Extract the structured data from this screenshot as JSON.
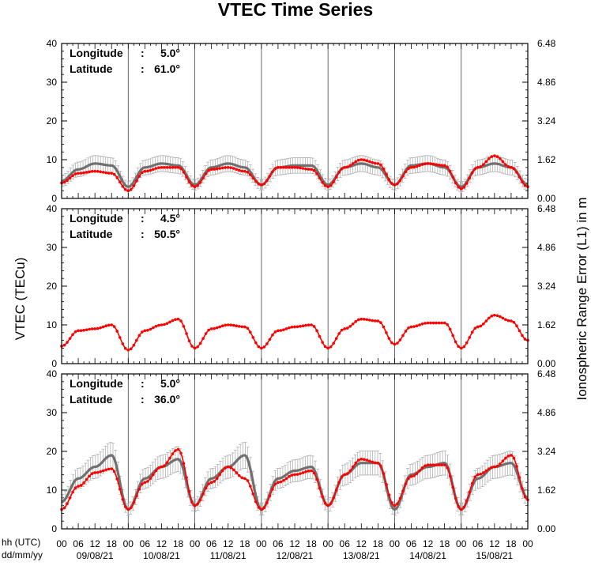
{
  "chart_data": {
    "type": "line",
    "title": "VTEC Time Series",
    "ylabel": "VTEC (TECu)",
    "y2label": "Ionospheric Range Error (L1) in m",
    "xlabel_time": "hh (UTC)",
    "xlabel_date": "dd/mm/yy",
    "ylim": [
      0,
      40
    ],
    "yticks": [
      "0",
      "10",
      "20",
      "30",
      "40"
    ],
    "y2lim": [
      0,
      6.48
    ],
    "y2ticks": [
      "0.00",
      "1.62",
      "3.24",
      "4.86",
      "6.48"
    ],
    "hour_ticks": [
      "00",
      "06",
      "12",
      "18"
    ],
    "last_hour_tick": "00",
    "dates": [
      "09/08/21",
      "10/08/21",
      "11/08/21",
      "12/08/21",
      "13/08/21",
      "14/08/21",
      "15/08/21"
    ],
    "x_unit": "hours since 09/08/21 00 UTC",
    "xlim": [
      0,
      168
    ],
    "series_colors": {
      "measured": "#ff0000",
      "reference": "#707070",
      "spread": "#a8a8a8"
    },
    "panels": [
      {
        "longitude_label": "Longitude",
        "latitude_label": "Latitude",
        "longitude": "5.0°",
        "latitude": "61.0°",
        "error_bars": true,
        "reference": [
          [
            0,
            4.5
          ],
          [
            6,
            7.5
          ],
          [
            12,
            9
          ],
          [
            18,
            8.5
          ],
          [
            24,
            3
          ],
          [
            30,
            8
          ],
          [
            36,
            9
          ],
          [
            42,
            8.5
          ],
          [
            48,
            3.5
          ],
          [
            54,
            8
          ],
          [
            60,
            9
          ],
          [
            66,
            8
          ],
          [
            72,
            3.5
          ],
          [
            78,
            8
          ],
          [
            84,
            8.5
          ],
          [
            90,
            8.5
          ],
          [
            96,
            3.5
          ],
          [
            102,
            8
          ],
          [
            108,
            9
          ],
          [
            114,
            8
          ],
          [
            120,
            3.5
          ],
          [
            126,
            8.5
          ],
          [
            132,
            9
          ],
          [
            138,
            8
          ],
          [
            144,
            3
          ],
          [
            150,
            8
          ],
          [
            156,
            9
          ],
          [
            162,
            8
          ],
          [
            168,
            3.5
          ]
        ],
        "measured": [
          [
            0,
            4
          ],
          [
            6,
            6.5
          ],
          [
            12,
            7
          ],
          [
            18,
            6.5
          ],
          [
            24,
            2
          ],
          [
            30,
            7
          ],
          [
            36,
            8
          ],
          [
            42,
            8
          ],
          [
            48,
            3
          ],
          [
            54,
            7.5
          ],
          [
            60,
            8
          ],
          [
            66,
            7
          ],
          [
            72,
            3.5
          ],
          [
            78,
            8
          ],
          [
            84,
            8
          ],
          [
            90,
            7.5
          ],
          [
            96,
            3
          ],
          [
            102,
            8
          ],
          [
            108,
            10
          ],
          [
            114,
            9
          ],
          [
            120,
            3.5
          ],
          [
            126,
            8
          ],
          [
            132,
            9
          ],
          [
            138,
            8.5
          ],
          [
            144,
            2.5
          ],
          [
            150,
            8
          ],
          [
            156,
            11
          ],
          [
            162,
            8
          ],
          [
            168,
            3
          ]
        ]
      },
      {
        "longitude_label": "Longitude",
        "latitude_label": "Latitude",
        "longitude": "4.5°",
        "latitude": "50.5°",
        "error_bars": false,
        "reference": [],
        "measured": [
          [
            0,
            4.5
          ],
          [
            6,
            8.5
          ],
          [
            12,
            9
          ],
          [
            18,
            10
          ],
          [
            24,
            3.5
          ],
          [
            30,
            8.5
          ],
          [
            36,
            10
          ],
          [
            42,
            11.5
          ],
          [
            48,
            4
          ],
          [
            54,
            9
          ],
          [
            60,
            10
          ],
          [
            66,
            9.5
          ],
          [
            72,
            4
          ],
          [
            78,
            8.5
          ],
          [
            84,
            9.5
          ],
          [
            90,
            10
          ],
          [
            96,
            4
          ],
          [
            102,
            9
          ],
          [
            108,
            11.5
          ],
          [
            114,
            11
          ],
          [
            120,
            5
          ],
          [
            126,
            9.5
          ],
          [
            132,
            10.5
          ],
          [
            138,
            10.5
          ],
          [
            144,
            4
          ],
          [
            150,
            9.5
          ],
          [
            156,
            12.5
          ],
          [
            162,
            11
          ],
          [
            168,
            6
          ]
        ]
      },
      {
        "longitude_label": "Longitude",
        "latitude_label": "Latitude",
        "longitude": "5.0°",
        "latitude": "36.0°",
        "error_bars": true,
        "reference": [
          [
            0,
            7
          ],
          [
            6,
            13
          ],
          [
            12,
            16
          ],
          [
            18,
            19
          ],
          [
            24,
            5
          ],
          [
            30,
            13
          ],
          [
            36,
            16
          ],
          [
            42,
            18
          ],
          [
            48,
            6
          ],
          [
            54,
            13
          ],
          [
            60,
            16
          ],
          [
            66,
            19
          ],
          [
            72,
            5
          ],
          [
            78,
            13
          ],
          [
            84,
            15
          ],
          [
            90,
            16
          ],
          [
            96,
            6
          ],
          [
            102,
            14
          ],
          [
            108,
            17
          ],
          [
            114,
            17
          ],
          [
            120,
            5
          ],
          [
            126,
            14
          ],
          [
            132,
            16
          ],
          [
            138,
            17
          ],
          [
            144,
            5
          ],
          [
            150,
            13
          ],
          [
            156,
            16
          ],
          [
            162,
            17
          ],
          [
            168,
            8
          ]
        ],
        "measured": [
          [
            0,
            5
          ],
          [
            6,
            11
          ],
          [
            12,
            14.5
          ],
          [
            18,
            15.5
          ],
          [
            24,
            5
          ],
          [
            30,
            12
          ],
          [
            36,
            16
          ],
          [
            42,
            20.5
          ],
          [
            48,
            6
          ],
          [
            54,
            12
          ],
          [
            60,
            16
          ],
          [
            66,
            13
          ],
          [
            72,
            5
          ],
          [
            78,
            12
          ],
          [
            84,
            14
          ],
          [
            90,
            15
          ],
          [
            96,
            6
          ],
          [
            102,
            14
          ],
          [
            108,
            18
          ],
          [
            114,
            17
          ],
          [
            120,
            6
          ],
          [
            126,
            13.5
          ],
          [
            132,
            16.5
          ],
          [
            138,
            16.5
          ],
          [
            144,
            5
          ],
          [
            150,
            14
          ],
          [
            156,
            16
          ],
          [
            162,
            19
          ],
          [
            168,
            7.5
          ]
        ]
      }
    ]
  }
}
